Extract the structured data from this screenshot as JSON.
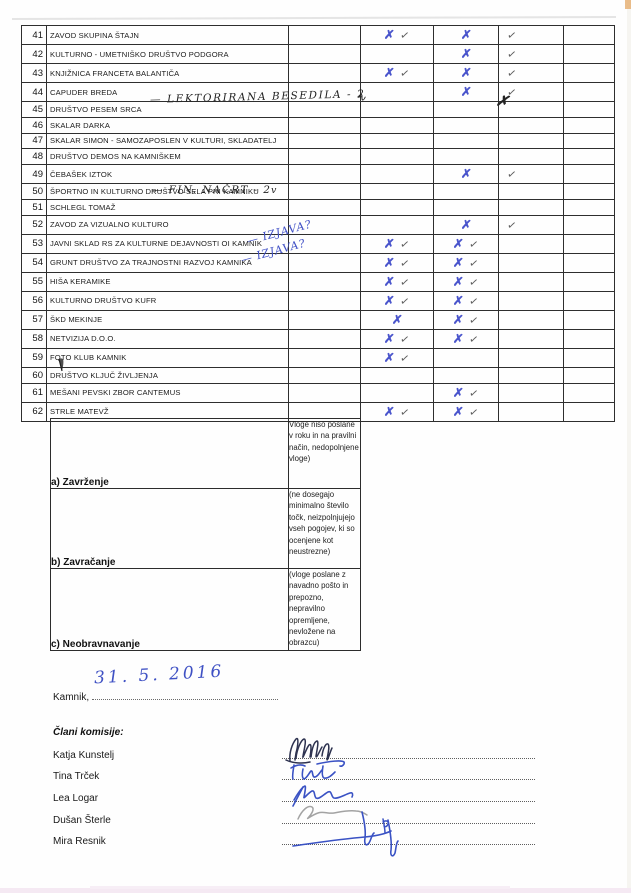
{
  "document": {
    "kind": "scanned evaluation sheet",
    "language": "Slovenian"
  },
  "eval_table": {
    "mark_legend": {
      "x": "blue handwritten X",
      "check": "handwritten check mark",
      "black_x": "black scribbled X"
    },
    "rows": [
      {
        "num": "41",
        "name": "ZAVOD SKUPINA ŠTAJN",
        "c1": "",
        "c2": "✗✓",
        "c3": "✗",
        "c4": "✓",
        "c5": ""
      },
      {
        "num": "42",
        "name": "KULTURNO - UMETNIŠKO DRUŠTVO PODGORA",
        "c1": "",
        "c2": "",
        "c3": "✗",
        "c4": "✓",
        "c5": ""
      },
      {
        "num": "43",
        "name": "KNJIŽNICA FRANCETA BALANTIČA",
        "c1": "",
        "c2": "✗✓",
        "c3": "✗",
        "c4": "✓",
        "c5": ""
      },
      {
        "num": "44",
        "name": "CAPUDER BREDA",
        "c1": "",
        "c2": "",
        "c3": "✗",
        "c4": "✓",
        "c5": ""
      },
      {
        "num": "45",
        "name": "DRUŠTVO PESEM SRCA",
        "c1": "",
        "c2": "",
        "c3": "",
        "c4": "",
        "c5": ""
      },
      {
        "num": "46",
        "name": "SKALAR DARKA",
        "c1": "",
        "c2": "",
        "c3": "",
        "c4": "",
        "c5": ""
      },
      {
        "num": "47",
        "name": "SKALAR SIMON - SAMOZAPOSLEN V KULTURI, SKLADATELJ",
        "c1": "",
        "c2": "",
        "c3": "",
        "c4": "",
        "c5": ""
      },
      {
        "num": "48",
        "name": "DRUŠTVO DEMOS NA KAMNIŠKEM",
        "c1": "",
        "c2": "",
        "c3": "",
        "c4": "",
        "c5": ""
      },
      {
        "num": "49",
        "name": "ČEBAŠEK IZTOK",
        "c1": "",
        "c2": "",
        "c3": "✗",
        "c4": "✓",
        "c5": ""
      },
      {
        "num": "50",
        "name": "ŠPORTNO IN KULTURNO DRUŠTVO SELA PRI KAMNIKU",
        "c1": "",
        "c2": "",
        "c3": "",
        "c4": "",
        "c5": ""
      },
      {
        "num": "51",
        "name": "SCHLEGL TOMAŽ",
        "c1": "",
        "c2": "",
        "c3": "",
        "c4": "",
        "c5": ""
      },
      {
        "num": "52",
        "name": "ZAVOD ZA VIZUALNO KULTURO",
        "c1": "",
        "c2": "",
        "c3": "✗",
        "c4": "✓",
        "c5": ""
      },
      {
        "num": "53",
        "name": "JAVNI SKLAD RS ZA KULTURNE DEJAVNOSTI OI KAMNIK",
        "c1": "",
        "c2": "✗✓",
        "c3": "✗✓",
        "c4": "",
        "c5": ""
      },
      {
        "num": "54",
        "name": "GRUNT DRUŠTVO ZA TRAJNOSTNI RAZVOJ KAMNIKA",
        "c1": "",
        "c2": "✗✓",
        "c3": "✗✓",
        "c4": "",
        "c5": ""
      },
      {
        "num": "55",
        "name": "HIŠA KERAMIKE",
        "c1": "",
        "c2": "✗✓",
        "c3": "✗✓",
        "c4": "",
        "c5": ""
      },
      {
        "num": "56",
        "name": "KULTURNO DRUŠTVO KUFR",
        "c1": "",
        "c2": "✗✓",
        "c3": "✗✓",
        "c4": "",
        "c5": ""
      },
      {
        "num": "57",
        "name": "ŠKD MEKINJE",
        "c1": "",
        "c2": "✗",
        "c3": "✗✓",
        "c4": "",
        "c5": ""
      },
      {
        "num": "58",
        "name": "NETVIZIJA D.O.O.",
        "c1": "",
        "c2": "✗✓",
        "c3": "✗✓",
        "c4": "",
        "c5": ""
      },
      {
        "num": "59",
        "name": "FOTO KLUB KAMNIK",
        "c1": "",
        "c2": "✗✓",
        "c3": "",
        "c4": "",
        "c5": ""
      },
      {
        "num": "60",
        "name": "DRUŠTVO KLJUČ ŽIVLJENJA",
        "c1": "",
        "c2": "",
        "c3": "",
        "c4": "",
        "c5": ""
      },
      {
        "num": "61",
        "name": "MEŠANI PEVSKI ZBOR CANTEMUS",
        "c1": "",
        "c2": "",
        "c3": "✗✓",
        "c4": "",
        "c5": ""
      },
      {
        "num": "62",
        "name": "STRLE MATEVŽ",
        "c1": "",
        "c2": "✗✓",
        "c3": "✗✓",
        "c4": "",
        "c5": ""
      }
    ]
  },
  "annotations": [
    {
      "id": "row45-note",
      "text": "— LEKTORIRANA BESEDILA - 2",
      "ink": "black"
    },
    {
      "id": "row45-tail",
      "text": "∿",
      "ink": "black"
    },
    {
      "id": "row45-cross",
      "text": "✗",
      "ink": "black"
    },
    {
      "id": "row51-note",
      "text": "— FIN. NAČRT - 2",
      "ink": "black"
    },
    {
      "id": "row51-tail",
      "text": "v",
      "ink": "black"
    },
    {
      "id": "row54-note",
      "text": "— IZJAVA?",
      "ink": "blue"
    },
    {
      "id": "row55-note",
      "text": "— IZJAVA?",
      "ink": "blue"
    }
  ],
  "category_table": {
    "rows": [
      {
        "label": "a) Zavrženje",
        "note": "Vloge niso poslane v roku in na pravilni način, nedopolnjene vloge)"
      },
      {
        "label": "b) Zavračanje",
        "note": "(ne dosegajo minimalno število točk, neizpolnjujejo vseh pogojev, ki so ocenjene kot neustrezne)"
      },
      {
        "label": "c) Neobravnavanje",
        "note": "(vloge poslane z navadno pošto in prepozno, nepravilno opremljene, nevložene na obrazcu)"
      }
    ]
  },
  "footer": {
    "place_label": "Kamnik,",
    "date_handwritten": "31. 5. 2016",
    "committee_heading": "Člani komisije:",
    "members": [
      "Katja Kunstelj",
      "Tina Trček",
      "Lea Logar",
      "Dušan Šterle",
      "Mira Resnik"
    ]
  },
  "colors": {
    "ink_blue": "#4050c6",
    "ink_black": "#232323",
    "table_border": "#2e2e2e",
    "scan_edge_tan": "#e6b277",
    "scan_edge_pink": "#f5e9f3"
  }
}
